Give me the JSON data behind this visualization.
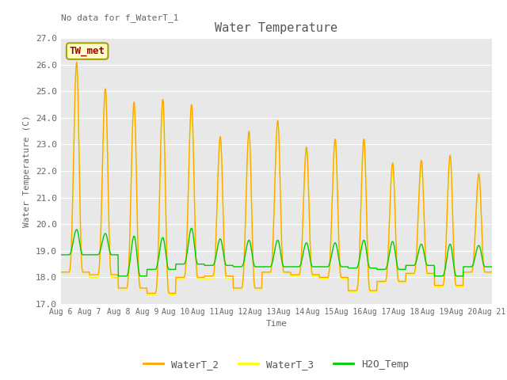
{
  "title": "Water Temperature",
  "xlabel": "Time",
  "ylabel": "Water Temperature (C)",
  "ylim": [
    17.0,
    27.0
  ],
  "yticks": [
    17.0,
    18.0,
    19.0,
    20.0,
    21.0,
    22.0,
    23.0,
    24.0,
    25.0,
    26.0,
    27.0
  ],
  "annotation_text": "No data for f_WaterT_1",
  "box_label": "TW_met",
  "fig_bg_color": "#ffffff",
  "plot_bg_color": "#e8e8e8",
  "line_WaterT_2": "#ffa500",
  "line_WaterT_3": "#ffff00",
  "line_H2O_Temp": "#00cc00",
  "legend_labels": [
    "WaterT_2",
    "WaterT_3",
    "H2O_Temp"
  ],
  "n_days": 15,
  "start_day": 6,
  "samples_per_day": 96
}
